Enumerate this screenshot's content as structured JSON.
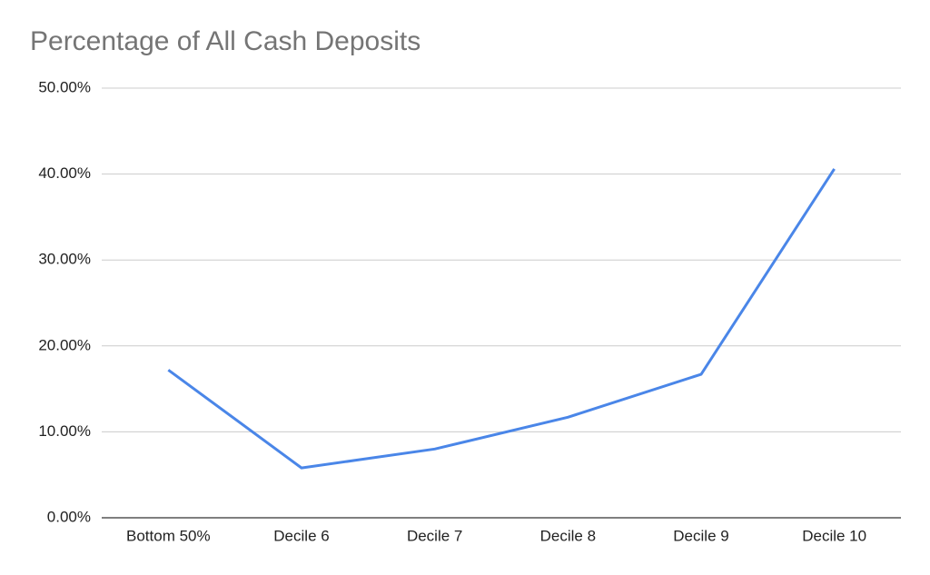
{
  "chart_data": {
    "type": "line",
    "title": "Percentage of All Cash Deposits",
    "categories": [
      "Bottom 50%",
      "Decile 6",
      "Decile 7",
      "Decile 8",
      "Decile 9",
      "Decile 10"
    ],
    "values": [
      17.2,
      5.8,
      8.0,
      11.7,
      16.7,
      40.6
    ],
    "color": "#4a86e8",
    "ylim": [
      0,
      50
    ],
    "yticks": [
      {
        "value": 0,
        "label": "0.00%"
      },
      {
        "value": 10,
        "label": "10.00%"
      },
      {
        "value": 20,
        "label": "20.00%"
      },
      {
        "value": 30,
        "label": "30.00%"
      },
      {
        "value": 40,
        "label": "40.00%"
      },
      {
        "value": 50,
        "label": "50.00%"
      }
    ],
    "grid": true
  }
}
